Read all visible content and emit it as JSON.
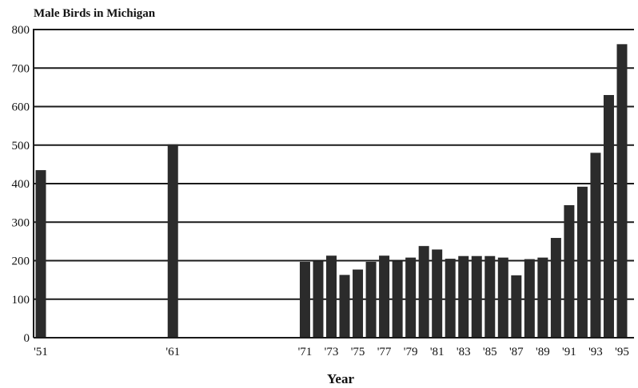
{
  "chart_data": {
    "type": "bar",
    "title": "Male Birds in Michigan",
    "xlabel": "Year",
    "ylabel": "",
    "ylim": [
      0,
      800
    ],
    "yticks": [
      "0",
      "100",
      "200",
      "300",
      "400",
      "500",
      "600",
      "700",
      "800"
    ],
    "grid": true,
    "x_positions": [
      1951,
      1961,
      1971,
      1972,
      1973,
      1974,
      1975,
      1976,
      1977,
      1978,
      1979,
      1980,
      1981,
      1982,
      1983,
      1984,
      1985,
      1986,
      1987,
      1988,
      1989,
      1990,
      1991,
      1992,
      1993,
      1994,
      1995
    ],
    "values": [
      435,
      502,
      197,
      198,
      213,
      163,
      177,
      197,
      213,
      198,
      208,
      238,
      229,
      205,
      212,
      212,
      212,
      208,
      162,
      204,
      208,
      259,
      344,
      392,
      480,
      630,
      762
    ],
    "tick_years": [
      1951,
      1961,
      1971,
      1973,
      1975,
      1977,
      1979,
      1981,
      1983,
      1985,
      1987,
      1989,
      1991,
      1993,
      1995
    ],
    "tick_labels": [
      "'51",
      "'61",
      "'71",
      "'73",
      "'75",
      "'77",
      "'79",
      "'81",
      "'83",
      "'85",
      "'87",
      "'89",
      "'91",
      "'93",
      "'95"
    ]
  }
}
